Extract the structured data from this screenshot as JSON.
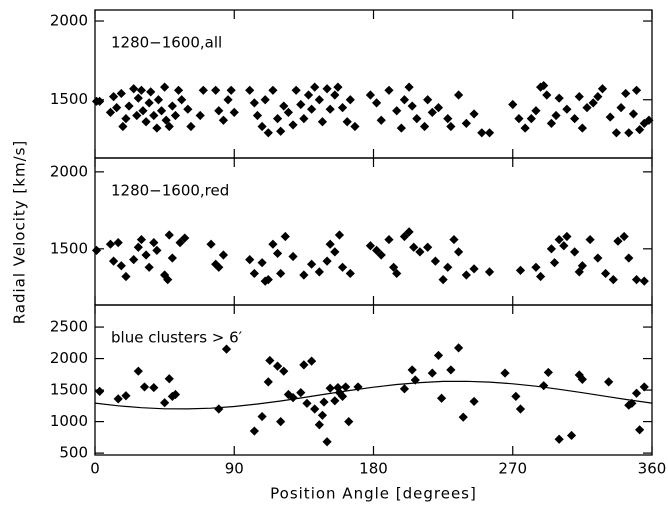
{
  "chart_data": [
    {
      "type": "scatter",
      "label": "1280−1600,all",
      "xlim": [
        0,
        360
      ],
      "ylim": [
        1130,
        2070
      ],
      "yticks": [
        1500,
        2000
      ],
      "color": "#000000",
      "x": [
        1,
        3,
        10,
        12,
        14,
        17,
        18,
        20,
        22,
        25,
        27,
        28,
        30,
        31,
        33,
        35,
        36,
        38,
        40,
        41,
        43,
        45,
        46,
        48,
        50,
        52,
        54,
        56,
        60,
        62,
        68,
        70,
        78,
        80,
        83,
        86,
        88,
        90,
        100,
        103,
        105,
        108,
        110,
        112,
        115,
        118,
        120,
        122,
        125,
        128,
        130,
        133,
        135,
        138,
        140,
        142,
        145,
        147,
        150,
        152,
        155,
        157,
        160,
        163,
        165,
        168,
        178,
        182,
        185,
        190,
        195,
        198,
        200,
        203,
        205,
        208,
        213,
        215,
        218,
        222,
        228,
        230,
        235,
        240,
        245,
        250,
        255,
        270,
        274,
        278,
        282,
        285,
        288,
        290,
        292,
        295,
        298,
        300,
        305,
        310,
        313,
        315,
        318,
        322,
        325,
        328,
        333,
        337,
        340,
        343,
        345,
        348,
        350,
        352,
        355,
        358
      ],
      "values": [
        1490,
        1490,
        1420,
        1520,
        1450,
        1540,
        1330,
        1380,
        1460,
        1570,
        1400,
        1510,
        1560,
        1430,
        1360,
        1480,
        1550,
        1400,
        1320,
        1500,
        1430,
        1580,
        1370,
        1330,
        1460,
        1400,
        1560,
        1500,
        1440,
        1330,
        1400,
        1560,
        1560,
        1430,
        1370,
        1500,
        1560,
        1420,
        1560,
        1480,
        1400,
        1330,
        1500,
        1290,
        1560,
        1380,
        1300,
        1460,
        1420,
        1340,
        1560,
        1470,
        1380,
        1530,
        1440,
        1580,
        1500,
        1360,
        1570,
        1440,
        1530,
        1580,
        1450,
        1360,
        1500,
        1330,
        1530,
        1480,
        1370,
        1560,
        1430,
        1320,
        1500,
        1580,
        1460,
        1380,
        1330,
        1500,
        1420,
        1450,
        1380,
        1330,
        1530,
        1350,
        1410,
        1290,
        1290,
        1470,
        1380,
        1320,
        1380,
        1430,
        1580,
        1590,
        1530,
        1350,
        1400,
        1510,
        1440,
        1380,
        1520,
        1320,
        1450,
        1480,
        1520,
        1570,
        1390,
        1290,
        1450,
        1540,
        1290,
        1410,
        1560,
        1310,
        1350,
        1370
      ]
    },
    {
      "type": "scatter",
      "label": "1280−1600,red",
      "ylabel": "Radial Velocity [km/s]",
      "xlim": [
        0,
        360
      ],
      "ylim": [
        1135,
        2090
      ],
      "yticks": [
        1500,
        2000
      ],
      "color": "#000000",
      "x": [
        1,
        10,
        12,
        15,
        17,
        20,
        25,
        28,
        30,
        33,
        35,
        38,
        40,
        45,
        47,
        48,
        50,
        55,
        58,
        75,
        78,
        80,
        83,
        100,
        103,
        108,
        110,
        112,
        115,
        118,
        120,
        123,
        128,
        135,
        140,
        145,
        150,
        152,
        155,
        158,
        160,
        165,
        178,
        182,
        185,
        190,
        193,
        195,
        200,
        203,
        206,
        210,
        215,
        220,
        225,
        228,
        232,
        235,
        240,
        245,
        255,
        275,
        285,
        288,
        295,
        297,
        300,
        303,
        305,
        310,
        313,
        315,
        320,
        325,
        330,
        335,
        338,
        342,
        345,
        350,
        355
      ],
      "values": [
        1490,
        1530,
        1420,
        1540,
        1390,
        1320,
        1430,
        1510,
        1560,
        1460,
        1380,
        1540,
        1490,
        1330,
        1300,
        1590,
        1440,
        1540,
        1570,
        1530,
        1400,
        1380,
        1460,
        1430,
        1340,
        1410,
        1290,
        1300,
        1530,
        1470,
        1340,
        1580,
        1450,
        1330,
        1400,
        1350,
        1420,
        1530,
        1480,
        1590,
        1380,
        1340,
        1520,
        1490,
        1460,
        1560,
        1380,
        1340,
        1580,
        1610,
        1510,
        1480,
        1510,
        1420,
        1300,
        1380,
        1560,
        1480,
        1330,
        1370,
        1350,
        1360,
        1380,
        1320,
        1500,
        1410,
        1560,
        1520,
        1580,
        1480,
        1350,
        1390,
        1560,
        1440,
        1340,
        1300,
        1550,
        1580,
        1440,
        1300,
        1290
      ]
    },
    {
      "type": "scatter",
      "label": "blue clusters > 6′",
      "xlabel": "Position Angle [degrees]",
      "xlim": [
        0,
        360
      ],
      "xticks": [
        0,
        90,
        180,
        270,
        360
      ],
      "ylim": [
        470,
        2850
      ],
      "yticks": [
        500,
        1000,
        1500,
        2000,
        2500
      ],
      "color": "#000000",
      "x": [
        3,
        15,
        20,
        28,
        32,
        38,
        45,
        48,
        50,
        52,
        80,
        85,
        103,
        108,
        112,
        113,
        118,
        120,
        122,
        125,
        128,
        133,
        135,
        137,
        140,
        142,
        145,
        147,
        148,
        150,
        152,
        155,
        157,
        158,
        160,
        162,
        164,
        170,
        200,
        205,
        207,
        218,
        222,
        224,
        230,
        235,
        238,
        245,
        265,
        272,
        275,
        290,
        293,
        300,
        308,
        313,
        315,
        332,
        345,
        347,
        350,
        352,
        355
      ],
      "values": [
        1480,
        1360,
        1410,
        1800,
        1550,
        1540,
        1300,
        1680,
        1400,
        1430,
        1200,
        2150,
        850,
        1080,
        1630,
        1970,
        1880,
        1000,
        1800,
        1430,
        1380,
        1460,
        1900,
        1290,
        1960,
        1200,
        950,
        1100,
        1310,
        680,
        1530,
        1330,
        1540,
        1460,
        1400,
        1550,
        1000,
        1550,
        1520,
        1820,
        1660,
        1770,
        2050,
        1370,
        1820,
        2170,
        1070,
        1320,
        1770,
        1400,
        1200,
        1570,
        1780,
        720,
        780,
        1740,
        1670,
        1630,
        1260,
        1290,
        1450,
        870,
        1550
      ],
      "lines": [
        {
          "color": "#000000",
          "x": [
            0,
            15,
            30,
            45,
            60,
            75,
            90,
            105,
            120,
            135,
            150,
            165,
            180,
            195,
            210,
            225,
            240,
            255,
            270,
            285,
            300,
            315,
            330,
            345,
            360
          ],
          "values": [
            1294,
            1251,
            1221,
            1203,
            1201,
            1213,
            1240,
            1279,
            1327,
            1382,
            1439,
            1495,
            1546,
            1589,
            1619,
            1637,
            1639,
            1627,
            1600,
            1561,
            1513,
            1458,
            1401,
            1345,
            1294
          ]
        }
      ]
    }
  ]
}
